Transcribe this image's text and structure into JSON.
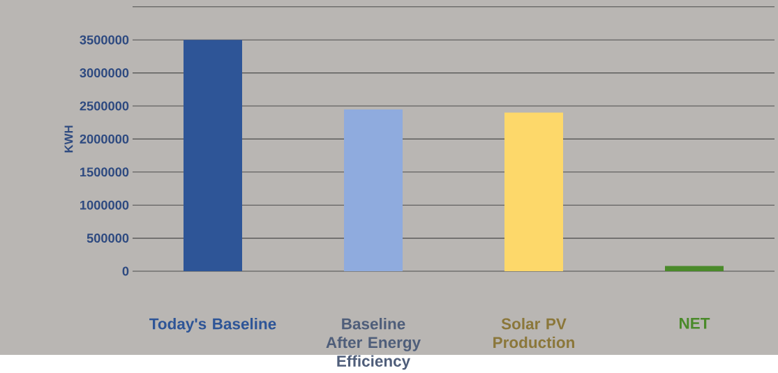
{
  "chart_data": {
    "type": "bar",
    "ylabel": "KWH",
    "categories": [
      "Today's Baseline",
      "Baseline After Energy Efficiency",
      "Solar PV Production",
      "NET"
    ],
    "values": [
      3500000,
      2450000,
      2400000,
      80000
    ],
    "colors": [
      "#2e5597",
      "#8fabde",
      "#fdd86a",
      "#4a8a2a"
    ],
    "ylim": [
      0,
      4000000
    ],
    "yticks": [
      0,
      500000,
      1000000,
      1500000,
      2000000,
      2500000,
      3000000,
      3500000,
      {
        "value": 4000000,
        "label": null
      }
    ],
    "grid": "y"
  }
}
